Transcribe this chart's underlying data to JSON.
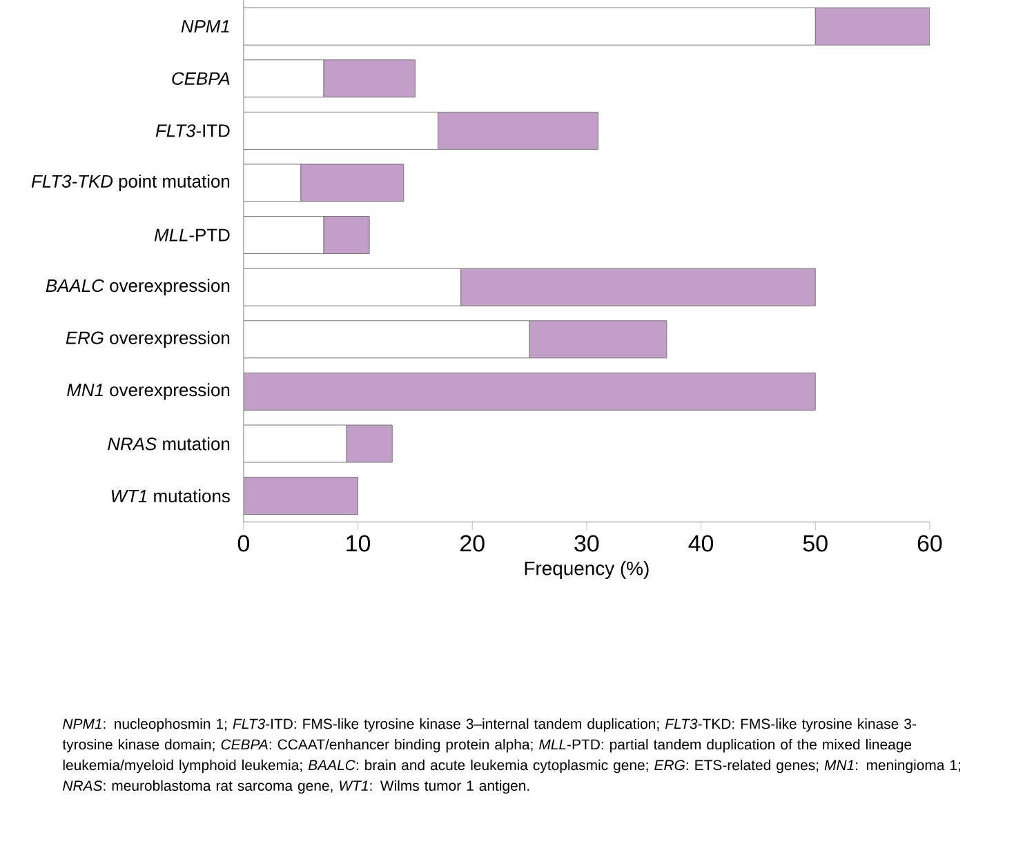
{
  "chart_data": {
    "type": "bar",
    "orientation": "horizontal",
    "stacked": true,
    "categories": [
      "*NPM1*",
      "*CEBPA*",
      "*FLT3*-ITD",
      "*FLT3-TKD* point mutation",
      "*MLL*-PTD",
      "*BAALC* overexpression",
      "*ERG* overexpression",
      "*MN1* overexpression",
      "*NRAS* mutation",
      "*WT1* mutations"
    ],
    "series": [
      {
        "color": "#ffffff",
        "values": [
          50,
          7,
          17,
          5,
          7,
          19,
          25,
          0,
          9,
          0
        ]
      },
      {
        "color": "#c39ec9",
        "values": [
          10,
          8,
          14,
          9,
          4,
          31,
          12,
          50,
          4,
          10
        ]
      }
    ],
    "xlabel": "Frequency (%)",
    "xlim": [
      0,
      60
    ],
    "xticks": [
      0,
      10,
      20,
      30,
      40,
      50,
      60
    ],
    "annotations": [
      "*NPM1*: nucleophosmin 1; *FLT3*-ITD: FMS-like tyrosine kinase 3–internal tandem duplication; *FLT3*-TKD: FMS-like tyrosine kinase 3-tyrosine kinase domain; *CEBPA*: CCAAT/enhancer binding protein alpha; *MLL*-PTD: partial tandem duplication of the mixed lineage leukemia/myeloid lymphoid leukemia; *BAALC*: brain and acute leukemia cytoplasmic gene; *ERG*: ETS-related genes; *MN1*: meningioma 1; *NRAS*: meuroblastoma rat sarcoma gene, *WT1*: Wilms tumor 1 antigen."
    ]
  }
}
